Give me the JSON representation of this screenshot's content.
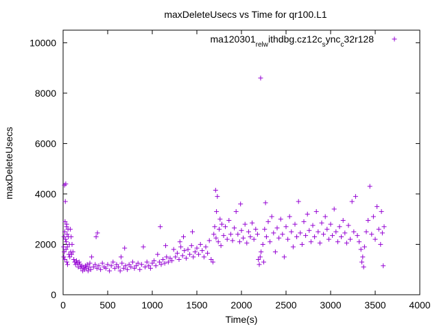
{
  "chart_data": {
    "type": "scatter",
    "title": "maxDeleteUsecs vs Time for qr100.L1",
    "xlabel": "Time(s)",
    "ylabel": "maxDeleteUsecs",
    "xlim": [
      0,
      4000
    ],
    "ylim": [
      0,
      10500
    ],
    "xticks": [
      0,
      500,
      1000,
      1500,
      2000,
      2500,
      3000,
      3500,
      4000
    ],
    "yticks": [
      0,
      2000,
      4000,
      6000,
      8000,
      10000
    ],
    "grid": false,
    "legend_position": "top-right",
    "marker": "plus",
    "color": "#9400d3",
    "series": [
      {
        "name": "ma120301_rel_withdbg.cz12c_sync_c32r128",
        "name_parts": [
          {
            "text": "ma120301",
            "sub": false
          },
          {
            "text": "rel",
            "sub": true
          },
          {
            "text": "w",
            "sub": true
          },
          {
            "text": "ithdbg.cz12c",
            "sub": false
          },
          {
            "text": "s",
            "sub": true
          },
          {
            "text": "ync",
            "sub": false
          },
          {
            "text": "c",
            "sub": true
          },
          {
            "text": "32r128",
            "sub": false
          }
        ],
        "points": [
          [
            5,
            1900
          ],
          [
            8,
            1500
          ],
          [
            10,
            2300
          ],
          [
            12,
            1700
          ],
          [
            15,
            4350
          ],
          [
            18,
            2500
          ],
          [
            20,
            1400
          ],
          [
            22,
            2900
          ],
          [
            25,
            3700
          ],
          [
            28,
            2200
          ],
          [
            30,
            4400
          ],
          [
            32,
            1800
          ],
          [
            35,
            2100
          ],
          [
            38,
            2700
          ],
          [
            40,
            2800
          ],
          [
            42,
            1300
          ],
          [
            45,
            2400
          ],
          [
            48,
            1900
          ],
          [
            50,
            1200
          ],
          [
            55,
            2600
          ],
          [
            60,
            2300
          ],
          [
            65,
            1600
          ],
          [
            70,
            2000
          ],
          [
            75,
            1500
          ],
          [
            80,
            2600
          ],
          [
            85,
            1700
          ],
          [
            90,
            2300
          ],
          [
            95,
            1600
          ],
          [
            100,
            2000
          ],
          [
            110,
            1700
          ],
          [
            120,
            1400
          ],
          [
            130,
            1300
          ],
          [
            140,
            1200
          ],
          [
            150,
            1350
          ],
          [
            160,
            1250
          ],
          [
            170,
            1100
          ],
          [
            180,
            1300
          ],
          [
            190,
            1200
          ],
          [
            200,
            1050
          ],
          [
            210,
            1150
          ],
          [
            220,
            950
          ],
          [
            230,
            1100
          ],
          [
            240,
            1000
          ],
          [
            250,
            1150
          ],
          [
            260,
            1050
          ],
          [
            270,
            1200
          ],
          [
            280,
            950
          ],
          [
            290,
            1100
          ],
          [
            300,
            1250
          ],
          [
            310,
            1000
          ],
          [
            320,
            1500
          ],
          [
            340,
            1100
          ],
          [
            360,
            1200
          ],
          [
            370,
            2300
          ],
          [
            380,
            1050
          ],
          [
            385,
            2450
          ],
          [
            400,
            1150
          ],
          [
            420,
            1000
          ],
          [
            440,
            1250
          ],
          [
            460,
            1100
          ],
          [
            480,
            1050
          ],
          [
            500,
            1200
          ],
          [
            520,
            950
          ],
          [
            540,
            1150
          ],
          [
            560,
            1300
          ],
          [
            580,
            1050
          ],
          [
            600,
            1200
          ],
          [
            620,
            1100
          ],
          [
            640,
            950
          ],
          [
            650,
            1500
          ],
          [
            660,
            1250
          ],
          [
            680,
            1050
          ],
          [
            690,
            1850
          ],
          [
            700,
            1150
          ],
          [
            720,
            1000
          ],
          [
            740,
            1200
          ],
          [
            760,
            1100
          ],
          [
            780,
            1300
          ],
          [
            800,
            1050
          ],
          [
            820,
            1150
          ],
          [
            840,
            1250
          ],
          [
            860,
            1000
          ],
          [
            880,
            1200
          ],
          [
            900,
            1900
          ],
          [
            920,
            1100
          ],
          [
            940,
            1300
          ],
          [
            960,
            1150
          ],
          [
            980,
            1050
          ],
          [
            1000,
            1250
          ],
          [
            1020,
            1350
          ],
          [
            1040,
            1150
          ],
          [
            1060,
            1600
          ],
          [
            1080,
            1300
          ],
          [
            1090,
            2700
          ],
          [
            1100,
            1200
          ],
          [
            1120,
            1400
          ],
          [
            1140,
            1250
          ],
          [
            1150,
            1950
          ],
          [
            1160,
            1500
          ],
          [
            1180,
            1300
          ],
          [
            1200,
            1450
          ],
          [
            1220,
            1350
          ],
          [
            1240,
            1800
          ],
          [
            1260,
            1500
          ],
          [
            1280,
            1650
          ],
          [
            1300,
            1400
          ],
          [
            1310,
            2100
          ],
          [
            1320,
            1900
          ],
          [
            1340,
            1550
          ],
          [
            1350,
            2300
          ],
          [
            1360,
            1750
          ],
          [
            1380,
            1450
          ],
          [
            1400,
            1800
          ],
          [
            1420,
            1600
          ],
          [
            1440,
            1950
          ],
          [
            1450,
            2500
          ],
          [
            1460,
            1500
          ],
          [
            1480,
            1700
          ],
          [
            1500,
            1850
          ],
          [
            1520,
            1600
          ],
          [
            1540,
            2000
          ],
          [
            1560,
            1750
          ],
          [
            1580,
            1500
          ],
          [
            1600,
            1900
          ],
          [
            1620,
            1650
          ],
          [
            1640,
            2150
          ],
          [
            1660,
            1400
          ],
          [
            1680,
            1300
          ],
          [
            1690,
            2400
          ],
          [
            1700,
            2700
          ],
          [
            1710,
            4150
          ],
          [
            1715,
            2250
          ],
          [
            1720,
            3300
          ],
          [
            1730,
            3900
          ],
          [
            1740,
            2100
          ],
          [
            1750,
            2600
          ],
          [
            1760,
            3000
          ],
          [
            1770,
            1950
          ],
          [
            1780,
            2800
          ],
          [
            1800,
            2350
          ],
          [
            1820,
            2700
          ],
          [
            1840,
            2200
          ],
          [
            1860,
            2950
          ],
          [
            1880,
            2400
          ],
          [
            1900,
            2150
          ],
          [
            1920,
            2650
          ],
          [
            1940,
            3300
          ],
          [
            1960,
            2400
          ],
          [
            1980,
            2100
          ],
          [
            1990,
            3600
          ],
          [
            2000,
            2550
          ],
          [
            2020,
            2250
          ],
          [
            2040,
            2800
          ],
          [
            2060,
            2050
          ],
          [
            2080,
            2500
          ],
          [
            2100,
            2300
          ],
          [
            2120,
            2850
          ],
          [
            2140,
            2200
          ],
          [
            2160,
            2600
          ],
          [
            2180,
            2400
          ],
          [
            2190,
            1400
          ],
          [
            2200,
            1200
          ],
          [
            2210,
            1500
          ],
          [
            2215,
            8600
          ],
          [
            2220,
            1700
          ],
          [
            2240,
            2000
          ],
          [
            2250,
            1300
          ],
          [
            2260,
            2600
          ],
          [
            2270,
            3650
          ],
          [
            2280,
            2300
          ],
          [
            2300,
            2900
          ],
          [
            2320,
            2100
          ],
          [
            2340,
            3100
          ],
          [
            2360,
            2450
          ],
          [
            2380,
            1700
          ],
          [
            2400,
            2650
          ],
          [
            2420,
            2250
          ],
          [
            2440,
            3000
          ],
          [
            2460,
            2400
          ],
          [
            2480,
            1500
          ],
          [
            2500,
            2700
          ],
          [
            2520,
            2200
          ],
          [
            2540,
            3100
          ],
          [
            2560,
            2500
          ],
          [
            2580,
            1900
          ],
          [
            2600,
            2800
          ],
          [
            2620,
            2300
          ],
          [
            2640,
            3700
          ],
          [
            2660,
            2450
          ],
          [
            2680,
            2000
          ],
          [
            2700,
            2900
          ],
          [
            2720,
            2350
          ],
          [
            2740,
            3200
          ],
          [
            2760,
            2550
          ],
          [
            2780,
            2100
          ],
          [
            2800,
            2750
          ],
          [
            2820,
            2300
          ],
          [
            2840,
            3300
          ],
          [
            2860,
            2500
          ],
          [
            2880,
            2050
          ],
          [
            2900,
            2850
          ],
          [
            2920,
            2400
          ],
          [
            2940,
            3100
          ],
          [
            2960,
            2600
          ],
          [
            2980,
            2200
          ],
          [
            3000,
            2800
          ],
          [
            3020,
            2350
          ],
          [
            3040,
            3400
          ],
          [
            3060,
            2500
          ],
          [
            3080,
            2100
          ],
          [
            3100,
            2700
          ],
          [
            3120,
            2300
          ],
          [
            3140,
            2950
          ],
          [
            3160,
            2450
          ],
          [
            3180,
            2050
          ],
          [
            3200,
            2750
          ],
          [
            3220,
            2200
          ],
          [
            3240,
            3700
          ],
          [
            3260,
            2500
          ],
          [
            3280,
            3900
          ],
          [
            3300,
            2350
          ],
          [
            3320,
            2100
          ],
          [
            3340,
            1800
          ],
          [
            3350,
            1300
          ],
          [
            3360,
            1500
          ],
          [
            3370,
            1100
          ],
          [
            3380,
            1900
          ],
          [
            3400,
            2500
          ],
          [
            3420,
            2950
          ],
          [
            3440,
            4300
          ],
          [
            3460,
            2400
          ],
          [
            3480,
            3100
          ],
          [
            3500,
            2200
          ],
          [
            3520,
            3500
          ],
          [
            3540,
            2600
          ],
          [
            3560,
            2000
          ],
          [
            3570,
            3300
          ],
          [
            3580,
            2450
          ],
          [
            3590,
            1150
          ],
          [
            3600,
            2700
          ]
        ]
      }
    ]
  }
}
